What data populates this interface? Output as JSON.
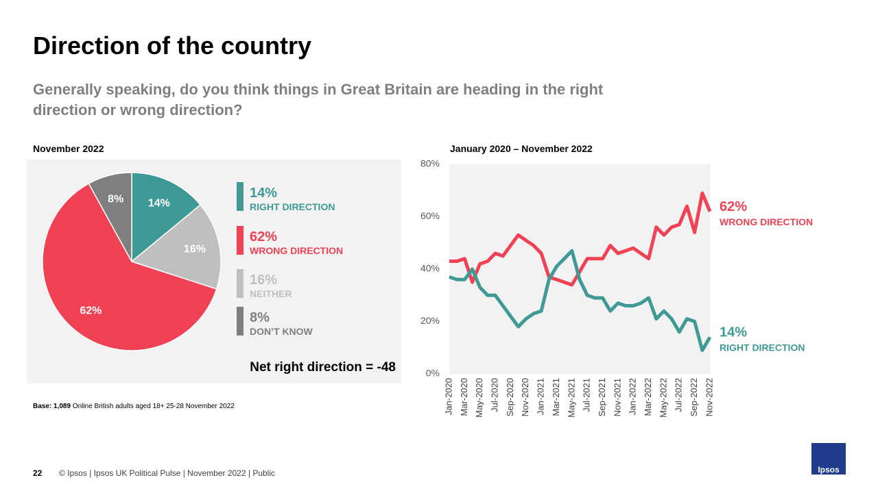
{
  "title": "Direction of the country",
  "subtitle": "Generally speaking, do you think things in Great Britain are heading in the right direction or wrong direction?",
  "base_label": "Base:",
  "base_count": "1,089",
  "base_text": "Online British adults aged 18+ 25-28 November 2022",
  "page_number": "22",
  "footer": "© Ipsos | Ipsos UK Political Pulse | November 2022 | Public",
  "logo": "Ipsos",
  "chart_data": [
    {
      "type": "pie",
      "title": "November 2022",
      "categories": [
        "RIGHT DIRECTION",
        "WRONG DIRECTION",
        "NEITHER",
        "DON’T KNOW"
      ],
      "values": [
        14,
        62,
        16,
        8
      ],
      "value_labels": [
        "14%",
        "62%",
        "16%",
        "8%"
      ],
      "colors": [
        "#3f9a96",
        "#f04155",
        "#bfbfbf",
        "#7f7f7f"
      ],
      "slice_order": [
        0,
        2,
        1,
        3
      ],
      "annotation": "Net right direction = -48"
    },
    {
      "type": "line",
      "title": "January 2020 – November 2022",
      "categories": [
        "Jan-2020",
        null,
        "Mar-2020",
        null,
        "May-2020",
        null,
        "Jul-2020",
        null,
        "Sep-2020",
        null,
        "Nov-2020",
        null,
        "Jan-2021",
        null,
        "Mar-2021",
        null,
        "May-2021",
        null,
        "Jul-2021",
        null,
        "Sep-2021",
        null,
        "Nov-2021",
        null,
        "Jan-2022",
        null,
        "Mar-2022",
        null,
        "May-2022",
        null,
        "Jul-2022",
        null,
        "Sep-2022",
        null,
        "Nov-2022"
      ],
      "series": [
        {
          "name": "WRONG DIRECTION",
          "color": "#f04155",
          "values": [
            43,
            43,
            44,
            35,
            42,
            43,
            46,
            45,
            49,
            53,
            51,
            49,
            46,
            37,
            36,
            35,
            34,
            39,
            44,
            44,
            44,
            49,
            46,
            47,
            48,
            46,
            44,
            56,
            53,
            56,
            57,
            64,
            54,
            69,
            62
          ],
          "value_labels": [
            null,
            null,
            null,
            null,
            null,
            null,
            null,
            null,
            null,
            null,
            null,
            null,
            null,
            null,
            null,
            null,
            null,
            null,
            null,
            null,
            null,
            null,
            null,
            null,
            null,
            null,
            null,
            null,
            null,
            null,
            null,
            null,
            null,
            null,
            "62%"
          ]
        },
        {
          "name": "RIGHT DIRECTION",
          "color": "#3f9a96",
          "values": [
            37,
            36,
            36,
            40,
            33,
            30,
            30,
            26,
            22,
            18,
            21,
            23,
            24,
            36,
            41,
            44,
            47,
            36,
            30,
            29,
            29,
            24,
            27,
            26,
            26,
            27,
            29,
            21,
            24,
            21,
            16,
            21,
            20,
            9,
            14
          ],
          "value_labels": [
            null,
            null,
            null,
            null,
            null,
            null,
            null,
            null,
            null,
            null,
            null,
            null,
            null,
            null,
            null,
            null,
            null,
            null,
            null,
            null,
            null,
            null,
            null,
            null,
            null,
            null,
            null,
            null,
            null,
            null,
            null,
            null,
            null,
            null,
            "14%"
          ]
        }
      ],
      "ylim": [
        0,
        80
      ],
      "yticks": [
        {
          "value": 0,
          "label": "0%"
        },
        {
          "value": 20,
          "label": "20%"
        },
        {
          "value": 40,
          "label": "40%"
        },
        {
          "value": 60,
          "label": "60%"
        },
        {
          "value": 80,
          "label": "80%"
        }
      ],
      "grid": false
    }
  ]
}
